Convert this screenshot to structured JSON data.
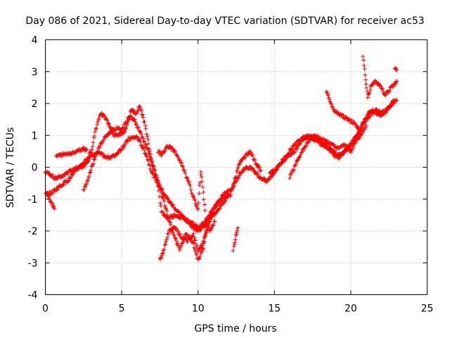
{
  "chart_data": {
    "type": "scatter",
    "title": "Day 086 of 2021, Sidereal Day-to-day VTEC variation (SDTVAR) for receiver ac53",
    "xlabel": "GPS time / hours",
    "ylabel": "SDTVAR / TECUs",
    "xlim": [
      0,
      25
    ],
    "ylim": [
      -4,
      4
    ],
    "xticks": [
      0,
      5,
      10,
      15,
      20,
      25
    ],
    "yticks": [
      -4,
      -3,
      -2,
      -1,
      0,
      1,
      2,
      3,
      4
    ],
    "grid": true,
    "marker": "+",
    "series": [
      {
        "color": "#ff0000",
        "tracks": [
          [
            [
              0.0,
              -0.15
            ],
            [
              0.3,
              -0.2
            ],
            [
              0.6,
              -0.35
            ],
            [
              1.0,
              -0.3
            ],
            [
              1.5,
              -0.15
            ],
            [
              2.0,
              -0.05
            ],
            [
              2.5,
              0.05
            ],
            [
              3.0,
              0.35
            ],
            [
              3.5,
              0.45
            ],
            [
              4.0,
              0.3
            ],
            [
              4.5,
              0.35
            ],
            [
              5.0,
              0.6
            ],
            [
              5.5,
              0.9
            ],
            [
              6.0,
              0.95
            ],
            [
              6.3,
              0.7
            ],
            [
              6.6,
              0.4
            ],
            [
              7.0,
              -0.2
            ],
            [
              7.5,
              -0.6
            ],
            [
              8.0,
              -1.0
            ],
            [
              8.5,
              -1.3
            ],
            [
              9.0,
              -1.55
            ],
            [
              9.5,
              -1.8
            ],
            [
              10.0,
              -2.0
            ],
            [
              10.5,
              -1.8
            ],
            [
              11.0,
              -1.5
            ],
            [
              11.5,
              -1.2
            ],
            [
              12.0,
              -0.9
            ]
          ],
          [
            [
              0.0,
              -0.85
            ],
            [
              0.4,
              -0.8
            ],
            [
              0.8,
              -0.65
            ],
            [
              1.2,
              -0.5
            ],
            [
              1.6,
              -0.35
            ],
            [
              2.0,
              -0.1
            ],
            [
              2.4,
              0.1
            ],
            [
              2.8,
              0.3
            ],
            [
              3.0,
              0.5
            ],
            [
              3.3,
              1.2
            ],
            [
              3.6,
              1.7
            ],
            [
              4.0,
              1.5
            ],
            [
              4.5,
              1.0
            ],
            [
              5.0,
              1.05
            ],
            [
              5.3,
              1.2
            ],
            [
              5.6,
              1.8
            ],
            [
              5.9,
              1.7
            ],
            [
              6.2,
              1.9
            ],
            [
              6.5,
              1.4
            ],
            [
              6.8,
              0.6
            ],
            [
              7.0,
              0.1
            ],
            [
              7.3,
              -0.3
            ],
            [
              7.6,
              -1.4
            ],
            [
              8.0,
              -1.6
            ],
            [
              8.5,
              -1.5
            ],
            [
              9.0,
              -1.6
            ],
            [
              9.5,
              -1.7
            ],
            [
              10.0,
              -1.9
            ],
            [
              10.5,
              -1.7
            ],
            [
              11.0,
              -1.3
            ],
            [
              11.5,
              -1.0
            ],
            [
              12.0,
              -0.85
            ],
            [
              12.3,
              -0.6
            ],
            [
              12.6,
              -0.3
            ],
            [
              13.0,
              -0.05
            ],
            [
              13.5,
              0.0
            ],
            [
              14.0,
              -0.3
            ],
            [
              14.5,
              -0.45
            ],
            [
              15.0,
              -0.15
            ],
            [
              15.5,
              0.2
            ],
            [
              16.0,
              0.5
            ],
            [
              16.5,
              0.8
            ],
            [
              17.0,
              1.0
            ],
            [
              17.5,
              0.9
            ],
            [
              18.0,
              0.75
            ],
            [
              18.5,
              0.6
            ],
            [
              19.0,
              0.35
            ],
            [
              19.5,
              0.45
            ],
            [
              20.0,
              0.7
            ],
            [
              20.5,
              1.1
            ],
            [
              21.0,
              1.5
            ],
            [
              21.5,
              1.75
            ],
            [
              22.0,
              1.6
            ],
            [
              22.5,
              1.9
            ],
            [
              23.0,
              2.1
            ]
          ],
          [
            [
              0.1,
              -0.8
            ],
            [
              0.3,
              -1.0
            ],
            [
              0.5,
              -1.2
            ],
            [
              0.6,
              -1.3
            ]
          ],
          [
            [
              0.7,
              0.35
            ],
            [
              1.2,
              0.4
            ],
            [
              1.7,
              0.45
            ],
            [
              2.1,
              0.5
            ],
            [
              2.5,
              0.6
            ],
            [
              2.7,
              0.55
            ]
          ],
          [
            [
              2.5,
              -0.7
            ],
            [
              2.7,
              -0.5
            ],
            [
              2.9,
              -0.2
            ],
            [
              3.1,
              0.1
            ],
            [
              3.3,
              0.4
            ],
            [
              3.6,
              0.7
            ],
            [
              4.0,
              1.0
            ],
            [
              4.5,
              1.2
            ],
            [
              5.0,
              1.2
            ],
            [
              5.3,
              1.4
            ],
            [
              5.5,
              1.6
            ],
            [
              5.8,
              1.5
            ],
            [
              6.1,
              1.2
            ],
            [
              6.4,
              0.9
            ],
            [
              6.8,
              0.4
            ],
            [
              7.2,
              -0.2
            ],
            [
              7.6,
              -0.8
            ],
            [
              8.0,
              -1.5
            ],
            [
              8.4,
              -2.1
            ],
            [
              8.8,
              -2.6
            ],
            [
              9.2,
              -2.1
            ],
            [
              9.6,
              -2.3
            ],
            [
              10.0,
              -2.9
            ],
            [
              10.3,
              -2.6
            ],
            [
              10.5,
              -2.1
            ],
            [
              10.8,
              -1.6
            ],
            [
              11.2,
              -1.2
            ],
            [
              11.6,
              -0.9
            ],
            [
              12.0,
              -0.7
            ]
          ],
          [
            [
              7.4,
              0.5
            ],
            [
              7.6,
              0.4
            ],
            [
              7.8,
              0.5
            ],
            [
              8.0,
              0.65
            ],
            [
              8.3,
              0.6
            ],
            [
              8.6,
              0.4
            ],
            [
              9.0,
              0.0
            ],
            [
              9.4,
              -0.5
            ],
            [
              9.8,
              -1.1
            ],
            [
              10.0,
              -1.3
            ],
            [
              10.1,
              -0.6
            ],
            [
              10.2,
              -0.1
            ],
            [
              10.3,
              -0.6
            ],
            [
              10.5,
              -1.6
            ],
            [
              10.8,
              -2.0
            ],
            [
              11.1,
              -1.7
            ]
          ],
          [
            [
              7.5,
              -2.9
            ],
            [
              7.7,
              -2.7
            ],
            [
              7.9,
              -2.3
            ],
            [
              8.1,
              -2.0
            ],
            [
              8.5,
              -1.9
            ],
            [
              8.9,
              -2.2
            ],
            [
              9.3,
              -2.3
            ],
            [
              9.7,
              -2.1
            ],
            [
              10.0,
              -2.6
            ],
            [
              10.3,
              -2.4
            ],
            [
              10.6,
              -1.9
            ]
          ],
          [
            [
              12.1,
              -0.9
            ],
            [
              12.4,
              -0.4
            ],
            [
              12.7,
              0.1
            ],
            [
              13.0,
              0.3
            ],
            [
              13.4,
              0.5
            ],
            [
              13.8,
              0.1
            ],
            [
              14.1,
              -0.1
            ]
          ],
          [
            [
              12.3,
              -2.6
            ],
            [
              12.4,
              -2.4
            ],
            [
              12.5,
              -2.1
            ],
            [
              12.6,
              -1.9
            ]
          ],
          [
            [
              14.7,
              -0.2
            ],
            [
              15.2,
              0.0
            ],
            [
              15.8,
              0.3
            ],
            [
              16.3,
              0.5
            ],
            [
              16.8,
              0.85
            ],
            [
              17.3,
              1.0
            ],
            [
              17.8,
              0.9
            ],
            [
              18.3,
              0.7
            ],
            [
              18.8,
              0.55
            ],
            [
              19.2,
              0.3
            ],
            [
              19.6,
              0.5
            ],
            [
              20.0,
              0.7
            ],
            [
              20.5,
              0.9
            ],
            [
              21.0,
              1.3
            ]
          ],
          [
            [
              16.0,
              -0.3
            ],
            [
              16.4,
              0.1
            ],
            [
              16.8,
              0.5
            ],
            [
              17.2,
              0.8
            ],
            [
              17.6,
              1.0
            ],
            [
              18.0,
              0.9
            ],
            [
              18.4,
              0.8
            ],
            [
              18.8,
              0.7
            ],
            [
              19.2,
              0.6
            ],
            [
              19.6,
              0.7
            ],
            [
              20.0,
              0.5
            ],
            [
              20.4,
              0.9
            ],
            [
              20.8,
              1.4
            ],
            [
              21.2,
              1.7
            ],
            [
              21.6,
              1.8
            ],
            [
              22.0,
              1.7
            ],
            [
              22.4,
              1.8
            ],
            [
              22.8,
              2.1
            ]
          ],
          [
            [
              18.4,
              2.4
            ],
            [
              18.6,
              2.1
            ],
            [
              18.9,
              1.8
            ],
            [
              19.2,
              1.7
            ],
            [
              19.5,
              1.6
            ],
            [
              19.8,
              1.5
            ],
            [
              20.2,
              1.4
            ],
            [
              20.5,
              1.2
            ]
          ],
          [
            [
              20.8,
              3.5
            ],
            [
              20.9,
              3.1
            ],
            [
              21.0,
              2.6
            ],
            [
              21.1,
              2.2
            ],
            [
              21.3,
              2.5
            ],
            [
              21.6,
              2.7
            ],
            [
              21.9,
              2.6
            ],
            [
              22.2,
              2.3
            ],
            [
              22.5,
              2.4
            ],
            [
              22.8,
              2.6
            ],
            [
              23.0,
              2.7
            ]
          ],
          [
            [
              22.9,
              3.1
            ],
            [
              23.0,
              3.05
            ]
          ]
        ]
      }
    ]
  }
}
